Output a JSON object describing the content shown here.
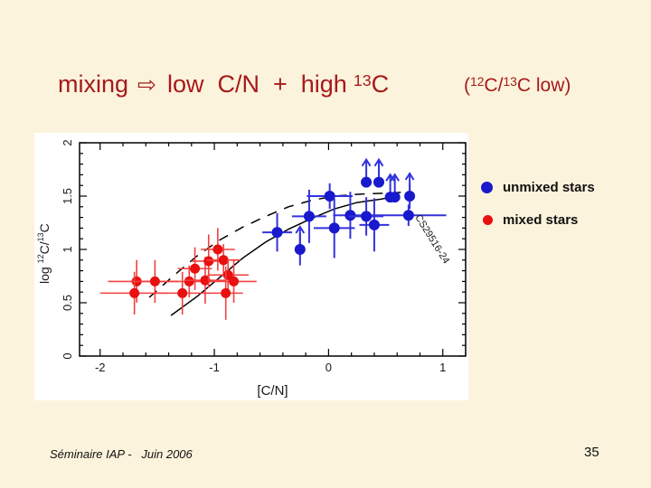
{
  "slide": {
    "bg_color": "#FCF3DC",
    "title_color": "#A61A1A",
    "title": {
      "word1": "mixing",
      "arrow": "⇨",
      "phrase": "low  C/N  +  high",
      "iso_sup": "13",
      "iso_el": "C",
      "paren": {
        "open": "(",
        "sup_a": "12",
        "mid": "C/",
        "sup_b": "13",
        "close": "C low)"
      }
    },
    "footer_left": "Séminaire IAP -   Juin 2006",
    "page_number": "35"
  },
  "legend": {
    "items": [
      {
        "label": "unmixed stars",
        "color": "#1818CC"
      },
      {
        "label": "mixed stars",
        "color": "#E81010"
      }
    ]
  },
  "chart_data": {
    "type": "scatter",
    "title": "",
    "xlabel": "[C/N]",
    "ylabel": "log 12C/13C",
    "ylabel_parts": {
      "prefix": "log  ",
      "sup1": "12",
      "mid": "C/",
      "sup2": "13",
      "tail": "C"
    },
    "xlim": [
      -2.18,
      1.2
    ],
    "ylim": [
      0,
      2
    ],
    "xticks": [
      -2,
      -1,
      0,
      1
    ],
    "xtick_labels": [
      "-2",
      "-1",
      "0",
      "1"
    ],
    "yticks": [
      0,
      0.5,
      1,
      1.5,
      2
    ],
    "ytick_labels": [
      "0",
      "0.5",
      "1",
      "1.5",
      "2"
    ],
    "x_minor_step": 0.2,
    "y_minor_step": 0.1,
    "grid": false,
    "legend_position": "outside-right",
    "series": [
      {
        "name": "unmixed stars",
        "color": "#1818CC",
        "bar_color": "#3333DD",
        "points": [
          {
            "x": -0.45,
            "y": 1.16,
            "xerr": 0.13,
            "yerr": 0.18,
            "limit": false
          },
          {
            "x": -0.25,
            "y": 1.0,
            "xerr": 0.0,
            "yerr": 0.15,
            "limit": true
          },
          {
            "x": -0.17,
            "y": 1.31,
            "xerr": 0.15,
            "yerr": 0.25,
            "limit": false
          },
          {
            "x": 0.01,
            "y": 1.5,
            "xerr": 0.2,
            "yerr": 0.12,
            "limit": false
          },
          {
            "x": 0.05,
            "y": 1.2,
            "xerr": 0.18,
            "yerr": 0.28,
            "limit": false
          },
          {
            "x": 0.19,
            "y": 1.32,
            "xerr": 0.15,
            "yerr": 0.22,
            "limit": false
          },
          {
            "x": 0.33,
            "y": 1.63,
            "xerr": 0.0,
            "yerr": 0.0,
            "limit": true
          },
          {
            "x": 0.33,
            "y": 1.31,
            "xerr": 0.15,
            "yerr": 0.18,
            "limit": false
          },
          {
            "x": 0.4,
            "y": 1.23,
            "xerr": 0.13,
            "yerr": 0.25,
            "limit": false
          },
          {
            "x": 0.44,
            "y": 1.63,
            "xerr": 0.0,
            "yerr": 0.0,
            "limit": true
          },
          {
            "x": 0.54,
            "y": 1.49,
            "xerr": 0.0,
            "yerr": 0.0,
            "limit": true
          },
          {
            "x": 0.58,
            "y": 1.49,
            "xerr": 0.0,
            "yerr": 0.0,
            "limit": true
          },
          {
            "x": 0.71,
            "y": 1.5,
            "xerr": 0.0,
            "yerr": 0.12,
            "limit": true
          },
          {
            "x": 0.7,
            "y": 1.32,
            "xerr": 0.33,
            "yerr": 0.1,
            "limit": false
          }
        ]
      },
      {
        "name": "mixed stars",
        "color": "#E81010",
        "bar_color": "#F34040",
        "points": [
          {
            "x": -1.68,
            "y": 0.7,
            "xerr": 0.25,
            "yerr": 0.2,
            "limit": false
          },
          {
            "x": -1.7,
            "y": 0.59,
            "xerr": 0.3,
            "yerr": 0.2,
            "limit": false
          },
          {
            "x": -1.52,
            "y": 0.7,
            "xerr": 0.2,
            "yerr": 0.2,
            "limit": false
          },
          {
            "x": -1.28,
            "y": 0.59,
            "xerr": 0.25,
            "yerr": 0.2,
            "limit": false
          },
          {
            "x": -1.22,
            "y": 0.7,
            "xerr": 0.2,
            "yerr": 0.15,
            "limit": false
          },
          {
            "x": -1.17,
            "y": 0.82,
            "xerr": 0.15,
            "yerr": 0.2,
            "limit": false
          },
          {
            "x": -1.08,
            "y": 0.71,
            "xerr": 0.18,
            "yerr": 0.22,
            "limit": false
          },
          {
            "x": -1.05,
            "y": 0.89,
            "xerr": 0.15,
            "yerr": 0.25,
            "limit": false
          },
          {
            "x": -0.97,
            "y": 1.0,
            "xerr": 0.15,
            "yerr": 0.2,
            "limit": false
          },
          {
            "x": -0.92,
            "y": 0.9,
            "xerr": 0.15,
            "yerr": 0.15,
            "limit": false
          },
          {
            "x": -0.88,
            "y": 0.76,
            "xerr": 0.18,
            "yerr": 0.15,
            "limit": false
          },
          {
            "x": -0.9,
            "y": 0.59,
            "xerr": 0.15,
            "yerr": 0.25,
            "limit": false
          },
          {
            "x": -0.83,
            "y": 0.7,
            "xerr": 0.2,
            "yerr": 0.2,
            "limit": false
          }
        ]
      }
    ],
    "curves": [
      {
        "style": "solid",
        "points": [
          [
            -1.38,
            0.38
          ],
          [
            -1.15,
            0.56
          ],
          [
            -0.95,
            0.74
          ],
          [
            -0.75,
            0.92
          ],
          [
            -0.55,
            1.07
          ],
          [
            -0.35,
            1.19
          ],
          [
            -0.15,
            1.29
          ],
          [
            0.05,
            1.38
          ],
          [
            0.25,
            1.44
          ],
          [
            0.45,
            1.47
          ],
          [
            0.56,
            1.49
          ]
        ]
      },
      {
        "style": "dashed",
        "points": [
          [
            -1.57,
            0.55
          ],
          [
            -1.35,
            0.76
          ],
          [
            -1.15,
            0.94
          ],
          [
            -0.95,
            1.09
          ],
          [
            -0.75,
            1.21
          ],
          [
            -0.55,
            1.31
          ],
          [
            -0.35,
            1.4
          ],
          [
            -0.15,
            1.46
          ],
          [
            0.05,
            1.5
          ],
          [
            0.3,
            1.52
          ],
          [
            0.55,
            1.53
          ],
          [
            0.72,
            1.54
          ]
        ]
      }
    ],
    "star_label": {
      "text": "CS29516-24",
      "x": 0.7,
      "y": 1.27,
      "rotation_deg": 58
    }
  }
}
